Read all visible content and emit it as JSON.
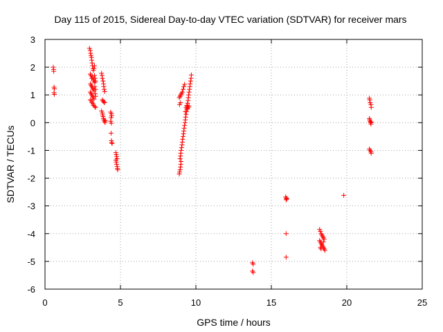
{
  "chart_data": {
    "type": "scatter",
    "title": "Day 115 of 2015, Sidereal Day-to-day VTEC variation (SDTVAR) for receiver mars",
    "xlabel": "GPS time / hours",
    "ylabel": "SDTVAR / TECUs",
    "xlim": [
      0,
      25
    ],
    "ylim": [
      -6,
      3
    ],
    "xticks": [
      0,
      5,
      10,
      15,
      20,
      25
    ],
    "yticks": [
      -6,
      -5,
      -4,
      -3,
      -2,
      -1,
      0,
      1,
      2,
      3
    ],
    "marker": "+",
    "color": "#ff0000",
    "grid": true,
    "series": [
      {
        "name": "SDTVAR",
        "points": [
          [
            0.55,
            2.0
          ],
          [
            0.57,
            1.92
          ],
          [
            0.58,
            1.85
          ],
          [
            0.6,
            1.28
          ],
          [
            0.62,
            1.22
          ],
          [
            0.6,
            1.08
          ],
          [
            0.62,
            1.02
          ],
          [
            2.95,
            2.68
          ],
          [
            3.0,
            2.6
          ],
          [
            3.02,
            2.5
          ],
          [
            3.05,
            2.42
          ],
          [
            3.08,
            2.35
          ],
          [
            3.1,
            2.25
          ],
          [
            3.12,
            2.15
          ],
          [
            3.15,
            2.05
          ],
          [
            3.18,
            1.95
          ],
          [
            3.2,
            1.88
          ],
          [
            3.0,
            1.75
          ],
          [
            3.05,
            1.7
          ],
          [
            3.1,
            1.6
          ],
          [
            3.15,
            1.65
          ],
          [
            3.2,
            1.55
          ],
          [
            3.25,
            1.5
          ],
          [
            3.3,
            1.45
          ],
          [
            3.02,
            1.4
          ],
          [
            3.05,
            1.35
          ],
          [
            3.1,
            1.3
          ],
          [
            3.15,
            1.25
          ],
          [
            3.2,
            1.2
          ],
          [
            3.25,
            1.15
          ],
          [
            3.0,
            1.1
          ],
          [
            3.05,
            1.05
          ],
          [
            3.1,
            1.0
          ],
          [
            3.15,
            0.95
          ],
          [
            3.2,
            0.9
          ],
          [
            3.25,
            0.85
          ],
          [
            3.0,
            0.82
          ],
          [
            3.08,
            0.78
          ],
          [
            3.12,
            0.72
          ],
          [
            3.18,
            0.68
          ],
          [
            3.22,
            0.62
          ],
          [
            3.3,
            0.58
          ],
          [
            3.35,
            0.55
          ],
          [
            3.28,
            1.7
          ],
          [
            3.32,
            1.6
          ],
          [
            3.35,
            1.5
          ],
          [
            3.3,
            1.3
          ],
          [
            3.35,
            1.2
          ],
          [
            3.32,
            1.05
          ],
          [
            3.35,
            0.95
          ],
          [
            3.28,
            2.05
          ],
          [
            3.25,
            1.95
          ],
          [
            3.75,
            1.78
          ],
          [
            3.78,
            1.7
          ],
          [
            3.8,
            1.6
          ],
          [
            3.85,
            1.5
          ],
          [
            3.88,
            1.4
          ],
          [
            3.9,
            1.3
          ],
          [
            3.92,
            1.2
          ],
          [
            3.95,
            1.12
          ],
          [
            3.8,
            0.82
          ],
          [
            3.85,
            0.78
          ],
          [
            3.9,
            0.75
          ],
          [
            3.95,
            0.72
          ],
          [
            3.75,
            0.42
          ],
          [
            3.8,
            0.35
          ],
          [
            3.82,
            0.28
          ],
          [
            3.85,
            0.22
          ],
          [
            3.88,
            0.15
          ],
          [
            3.9,
            0.1
          ],
          [
            3.95,
            0.05
          ],
          [
            3.98,
            0.0
          ],
          [
            4.0,
            0.08
          ],
          [
            4.35,
            0.38
          ],
          [
            4.4,
            0.32
          ],
          [
            4.42,
            0.25
          ],
          [
            4.38,
            0.18
          ],
          [
            4.35,
            0.05
          ],
          [
            4.4,
            -0.02
          ],
          [
            4.38,
            -0.38
          ],
          [
            4.4,
            -0.65
          ],
          [
            4.42,
            -0.72
          ],
          [
            4.45,
            -0.75
          ],
          [
            4.7,
            -1.08
          ],
          [
            4.72,
            -1.15
          ],
          [
            4.75,
            -1.22
          ],
          [
            4.78,
            -1.3
          ],
          [
            4.7,
            -1.35
          ],
          [
            4.72,
            -1.42
          ],
          [
            4.75,
            -1.5
          ],
          [
            4.78,
            -1.58
          ],
          [
            4.8,
            -1.65
          ],
          [
            4.82,
            -1.7
          ],
          [
            8.9,
            -1.85
          ],
          [
            8.92,
            -1.78
          ],
          [
            8.95,
            -1.7
          ],
          [
            8.98,
            -1.6
          ],
          [
            9.0,
            -1.5
          ],
          [
            9.02,
            -1.4
          ],
          [
            8.95,
            -1.3
          ],
          [
            8.98,
            -1.2
          ],
          [
            9.0,
            -1.1
          ],
          [
            9.02,
            -1.0
          ],
          [
            9.05,
            -0.9
          ],
          [
            9.08,
            -0.8
          ],
          [
            9.1,
            -0.7
          ],
          [
            9.12,
            -0.6
          ],
          [
            9.15,
            -0.5
          ],
          [
            9.18,
            -0.4
          ],
          [
            9.2,
            -0.3
          ],
          [
            9.22,
            -0.2
          ],
          [
            9.25,
            -0.1
          ],
          [
            9.28,
            0.0
          ],
          [
            9.3,
            0.1
          ],
          [
            9.32,
            0.2
          ],
          [
            9.35,
            0.3
          ],
          [
            9.38,
            0.4
          ],
          [
            9.4,
            0.5
          ],
          [
            9.42,
            0.6
          ],
          [
            9.45,
            0.7
          ],
          [
            9.48,
            0.8
          ],
          [
            9.5,
            0.9
          ],
          [
            9.52,
            1.0
          ],
          [
            9.55,
            1.1
          ],
          [
            9.58,
            1.2
          ],
          [
            9.6,
            1.3
          ],
          [
            9.62,
            1.4
          ],
          [
            9.65,
            1.5
          ],
          [
            9.68,
            1.6
          ],
          [
            9.7,
            1.72
          ],
          [
            8.9,
            0.9
          ],
          [
            8.95,
            0.95
          ],
          [
            9.0,
            1.0
          ],
          [
            9.05,
            1.05
          ],
          [
            9.1,
            1.1
          ],
          [
            9.15,
            1.2
          ],
          [
            9.2,
            1.3
          ],
          [
            9.25,
            1.38
          ],
          [
            8.92,
            0.65
          ],
          [
            8.98,
            0.72
          ],
          [
            9.3,
            0.4
          ],
          [
            9.35,
            0.55
          ],
          [
            9.4,
            0.62
          ],
          [
            9.45,
            0.5
          ],
          [
            9.5,
            0.55
          ],
          [
            9.55,
            0.6
          ],
          [
            13.75,
            -5.05
          ],
          [
            13.8,
            -5.1
          ],
          [
            13.75,
            -5.35
          ],
          [
            13.8,
            -5.4
          ],
          [
            15.95,
            -2.68
          ],
          [
            16.0,
            -2.72
          ],
          [
            15.98,
            -2.78
          ],
          [
            16.02,
            -2.75
          ],
          [
            15.98,
            -4.0
          ],
          [
            15.98,
            -4.85
          ],
          [
            18.2,
            -3.85
          ],
          [
            18.25,
            -3.92
          ],
          [
            18.3,
            -4.0
          ],
          [
            18.35,
            -4.05
          ],
          [
            18.4,
            -4.1
          ],
          [
            18.45,
            -4.15
          ],
          [
            18.5,
            -4.2
          ],
          [
            18.2,
            -4.25
          ],
          [
            18.25,
            -4.3
          ],
          [
            18.3,
            -4.35
          ],
          [
            18.35,
            -4.4
          ],
          [
            18.4,
            -4.45
          ],
          [
            18.45,
            -4.5
          ],
          [
            18.5,
            -4.55
          ],
          [
            18.55,
            -4.6
          ],
          [
            18.3,
            -4.55
          ],
          [
            18.25,
            -4.5
          ],
          [
            18.45,
            -4.3
          ],
          [
            19.8,
            -2.62
          ],
          [
            21.5,
            0.88
          ],
          [
            21.52,
            0.82
          ],
          [
            21.55,
            0.72
          ],
          [
            21.6,
            0.65
          ],
          [
            21.62,
            0.55
          ],
          [
            21.5,
            0.15
          ],
          [
            21.52,
            0.1
          ],
          [
            21.55,
            0.05
          ],
          [
            21.58,
            0.0
          ],
          [
            21.6,
            -0.05
          ],
          [
            21.62,
            0.02
          ],
          [
            21.5,
            -0.95
          ],
          [
            21.55,
            -1.0
          ],
          [
            21.6,
            -1.05
          ],
          [
            21.62,
            -1.1
          ]
        ]
      }
    ]
  }
}
